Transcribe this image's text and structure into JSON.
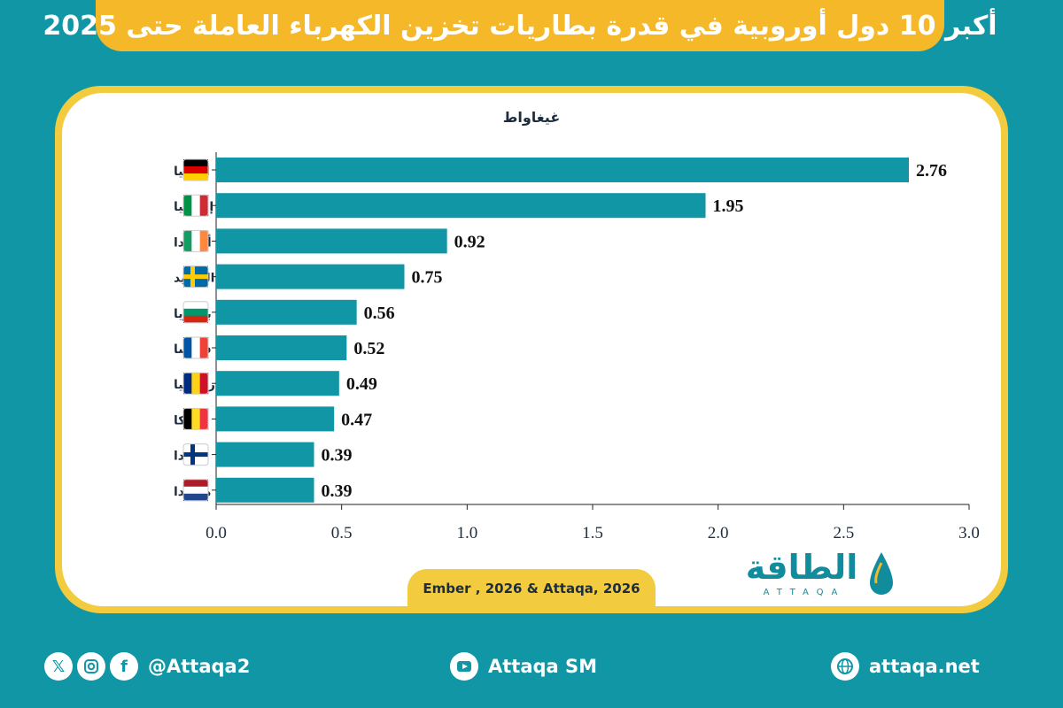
{
  "header": {
    "title": "أكبر 10 دول أوروبية في قدرة بطاريات تخزين الكهرباء العاملة حتى 2025"
  },
  "chart_data": {
    "type": "bar",
    "orientation": "horizontal",
    "unit_label": "غيغاواط",
    "categories": [
      "ألمانيا",
      "إيطاليا",
      "أيرلندا",
      "السويد",
      "بلغاريا",
      "فرنسا",
      "رومانيا",
      "بلجيكا",
      "فنلندا",
      "هولندا"
    ],
    "values": [
      2.76,
      1.95,
      0.92,
      0.75,
      0.56,
      0.52,
      0.49,
      0.47,
      0.39,
      0.39
    ],
    "value_labels": [
      "2.76",
      "1.95",
      "0.92",
      "0.75",
      "0.56",
      "0.52",
      "0.49",
      "0.47",
      "0.39",
      "0.39"
    ],
    "x_ticks": [
      "0.0",
      "0.5",
      "1.0",
      "1.5",
      "2.0",
      "2.5",
      "3.0"
    ],
    "xlim": [
      0,
      3.0
    ],
    "bar_color": "#1196a6",
    "flags": [
      {
        "type": "h",
        "colors": [
          "#000000",
          "#dd0000",
          "#ffce00"
        ]
      },
      {
        "type": "v",
        "colors": [
          "#009246",
          "#ffffff",
          "#ce2b37"
        ]
      },
      {
        "type": "v",
        "colors": [
          "#169b62",
          "#ffffff",
          "#ff883e"
        ]
      },
      {
        "type": "cross",
        "colors": [
          "#006aa7",
          "#fecc00"
        ]
      },
      {
        "type": "h",
        "colors": [
          "#ffffff",
          "#00966e",
          "#d62612"
        ]
      },
      {
        "type": "v",
        "colors": [
          "#0055a4",
          "#ffffff",
          "#ef4135"
        ]
      },
      {
        "type": "v",
        "colors": [
          "#002b7f",
          "#fcd116",
          "#ce1126"
        ]
      },
      {
        "type": "v",
        "colors": [
          "#000000",
          "#fdda24",
          "#ef3340"
        ]
      },
      {
        "type": "cross",
        "colors": [
          "#ffffff",
          "#003580"
        ]
      },
      {
        "type": "h",
        "colors": [
          "#ae1c28",
          "#ffffff",
          "#21468b"
        ]
      }
    ]
  },
  "source": "Ember , 2026 & Attaqa, 2026",
  "logo": {
    "arabic": "الطاقة",
    "english": "ATTAQA"
  },
  "footer": {
    "social_handle": "@Attaqa2",
    "youtube": "Attaqa SM",
    "website": "attaqa.net",
    "icons": [
      "x-icon",
      "instagram-icon",
      "facebook-icon",
      "youtube-icon",
      "globe-icon"
    ]
  }
}
